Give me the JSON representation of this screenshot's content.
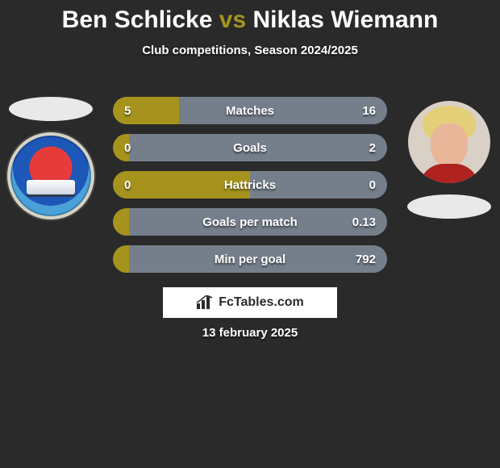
{
  "title": {
    "player1": "Ben Schlicke",
    "connector": "vs",
    "player2": "Niklas Wiemann",
    "accent_color": "#a6931d",
    "text_color": "#ffffff",
    "fontsize": 30
  },
  "subtitle": {
    "text": "Club competitions, Season 2024/2025",
    "fontsize": 15
  },
  "background_color": "#2a2a2a",
  "players": {
    "left": {
      "name": "Ben Schlicke",
      "color": "#a6931d"
    },
    "right": {
      "name": "Niklas Wiemann",
      "color": "#757f8b"
    }
  },
  "bars": {
    "type": "comparison-bar",
    "track_width": 340,
    "track_height": 34,
    "label_fontsize": 15,
    "value_fontsize": 15,
    "text_color": "#ffffff",
    "rows": [
      {
        "label": "Matches",
        "left": "5",
        "right": "16",
        "left_pct": 24,
        "right_pct": 76
      },
      {
        "label": "Goals",
        "left": "0",
        "right": "2",
        "left_pct": 6,
        "right_pct": 94
      },
      {
        "label": "Hattricks",
        "left": "0",
        "right": "0",
        "left_pct": 50,
        "right_pct": 50
      },
      {
        "label": "Goals per match",
        "left": "",
        "right": "0.13",
        "left_pct": 6,
        "right_pct": 94
      },
      {
        "label": "Min per goal",
        "left": "",
        "right": "792",
        "left_pct": 6,
        "right_pct": 94
      }
    ]
  },
  "logo": {
    "text": "FcTables.com",
    "box_bg": "#ffffff",
    "text_color": "#2a2a2a"
  },
  "date": "13 february 2025"
}
